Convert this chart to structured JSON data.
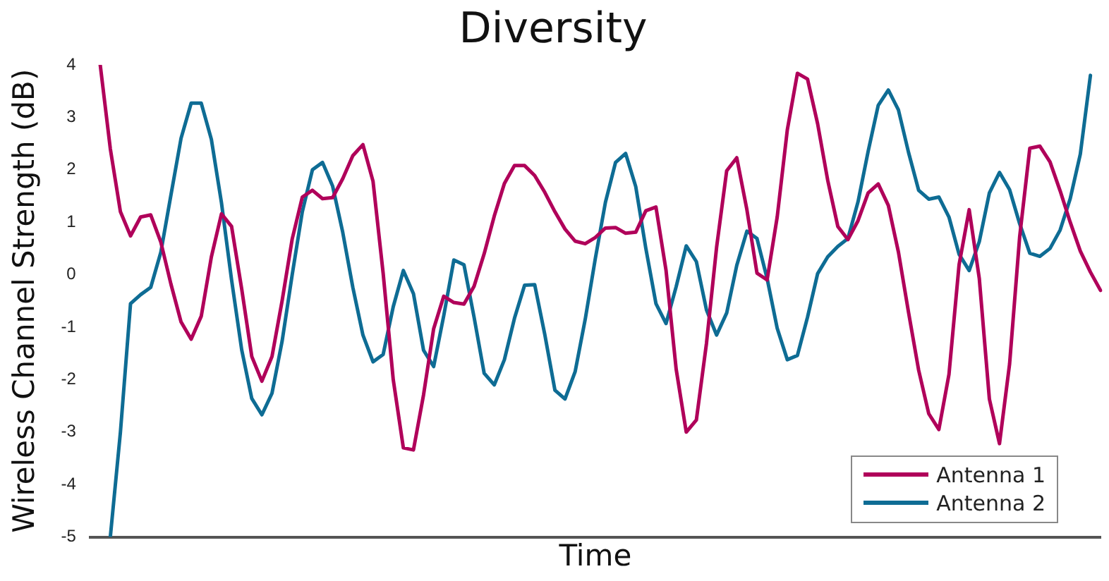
{
  "chart_data": {
    "type": "line",
    "title": "Diversity",
    "xlabel": "Time",
    "ylabel": "Wireless Channel Strength (dB)",
    "categories": [
      null,
      null,
      null,
      null,
      null,
      null,
      null,
      null,
      null,
      null,
      null,
      null,
      null,
      null,
      null,
      null,
      null,
      null,
      null,
      null,
      null,
      null,
      null,
      null,
      null,
      null,
      null,
      null,
      null,
      null,
      null,
      null,
      null,
      null,
      null,
      null,
      null,
      null,
      null,
      null,
      null,
      null,
      null,
      null,
      null,
      null,
      null,
      null,
      null,
      null,
      null,
      null,
      null,
      null,
      null,
      null,
      null,
      null,
      null,
      null,
      null,
      null,
      null,
      null,
      null,
      null,
      null,
      null,
      null,
      null,
      null,
      null,
      null,
      null,
      null,
      null,
      null,
      null,
      null,
      null,
      null,
      null,
      null,
      null,
      null,
      null,
      null,
      null,
      null,
      null,
      null,
      null,
      null,
      null,
      null,
      null,
      null,
      null,
      null,
      null,
      null
    ],
    "ylim": [
      -5,
      4
    ],
    "yticks": [
      -5,
      -4,
      -3,
      -2,
      -1,
      0,
      1,
      2,
      3,
      4
    ],
    "tick_labels": "y",
    "grid": false,
    "legend": "bottom right",
    "marker": "none",
    "line_style": "solid",
    "series": [
      {
        "name": "Antenna 1",
        "color": "#b0005a",
        "values": [
          null,
          4.0,
          2.4,
          1.2,
          0.74,
          1.1,
          1.14,
          0.62,
          -0.18,
          -0.9,
          -1.23,
          -0.79,
          0.34,
          1.16,
          0.92,
          -0.27,
          -1.56,
          -2.03,
          -1.56,
          -0.5,
          0.68,
          1.48,
          1.61,
          1.45,
          1.47,
          1.83,
          2.27,
          2.48,
          1.78,
          0.03,
          -2.0,
          -3.3,
          -3.34,
          -2.29,
          -1.03,
          -0.41,
          -0.53,
          -0.56,
          -0.22,
          0.4,
          1.12,
          1.74,
          2.08,
          2.08,
          1.89,
          1.57,
          1.2,
          0.87,
          0.64,
          0.59,
          0.71,
          0.89,
          0.9,
          0.79,
          0.81,
          1.22,
          1.29,
          0.08,
          -1.8,
          -3.0,
          -2.77,
          -1.31,
          0.52,
          1.98,
          2.23,
          1.24,
          0.03,
          -0.1,
          1.1,
          2.76,
          3.84,
          3.73,
          2.88,
          1.8,
          0.92,
          0.67,
          1.03,
          1.56,
          1.73,
          1.32,
          0.43,
          -0.72,
          -1.82,
          -2.65,
          -2.95,
          -1.9,
          0.19,
          1.24,
          -0.07,
          -2.37,
          -3.22,
          -1.7,
          0.73,
          2.41,
          2.45,
          2.15,
          1.6,
          1.0,
          0.45,
          0.05,
          -0.3
        ]
      },
      {
        "name": "Antenna 2",
        "color": "#0e6c94",
        "values": [
          null,
          null,
          -5.0,
          -3.0,
          -0.55,
          -0.38,
          -0.24,
          0.43,
          1.52,
          2.6,
          3.27,
          3.27,
          2.58,
          1.37,
          -0.1,
          -1.43,
          -2.36,
          -2.67,
          -2.26,
          -1.27,
          0.0,
          1.2,
          2.0,
          2.14,
          1.69,
          0.81,
          -0.24,
          -1.15,
          -1.66,
          -1.52,
          -0.61,
          0.08,
          -0.36,
          -1.44,
          -1.75,
          -0.78,
          0.28,
          0.19,
          -0.81,
          -1.88,
          -2.1,
          -1.62,
          -0.83,
          -0.2,
          -0.19,
          -1.14,
          -2.2,
          -2.37,
          -1.85,
          -0.85,
          0.31,
          1.38,
          2.14,
          2.31,
          1.68,
          0.5,
          -0.55,
          -0.93,
          -0.23,
          0.55,
          0.25,
          -0.67,
          -1.15,
          -0.73,
          0.18,
          0.83,
          0.69,
          -0.07,
          -1.02,
          -1.62,
          -1.54,
          -0.81,
          0.02,
          0.34,
          0.54,
          0.69,
          1.39,
          2.35,
          3.23,
          3.52,
          3.14,
          2.33,
          1.61,
          1.44,
          1.48,
          1.1,
          0.39,
          0.08,
          0.63,
          1.56,
          1.95,
          1.62,
          0.97,
          0.41,
          0.35,
          0.5,
          0.85,
          1.45,
          2.3,
          3.8,
          null
        ]
      }
    ]
  }
}
